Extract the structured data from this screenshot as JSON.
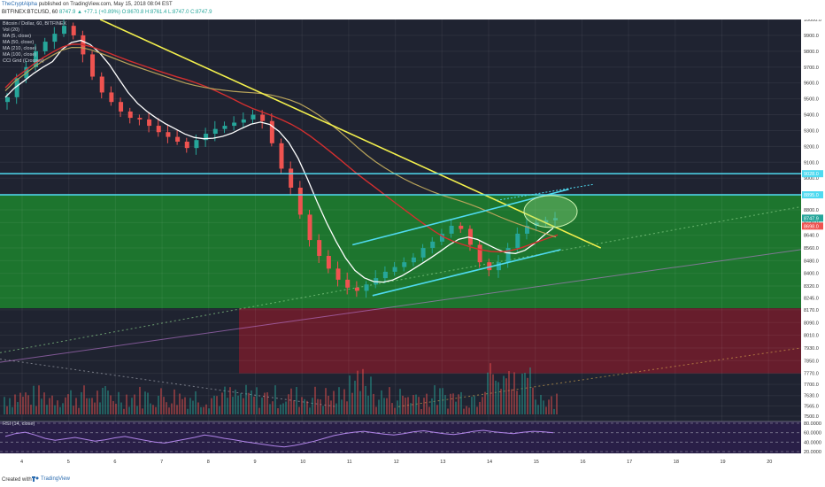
{
  "header": {
    "author": "TheCryptAlpha",
    "published": "published on TradingView.com, May 15, 2018 08:04 EST",
    "symbol_line": "BITFINEX:BTCUSD, 60",
    "ohlc": "8747.9 ▲ +77.1 (+0.89%) O:8670.8 H:8761.4 L:8747.0 C:8747.9"
  },
  "chart_labels": {
    "title": "Bitcoin / Dollar, 60, BITFINEX",
    "indicators": [
      "Vol (20)",
      "MA (5, close)",
      "MA (50, close)",
      "MA (210, close)",
      "MA (100, close)",
      "CCI Grid (Crosses)"
    ],
    "rsi": "RSI (14, close)"
  },
  "footer": {
    "created_with": "Created with",
    "brand": "TradingView"
  },
  "colors": {
    "background": "#1f2331",
    "green_zone": "#1e7a2e",
    "red_zone": "#6b1e2c",
    "trendline": "#f3f04d",
    "channel": "#4fdaf0",
    "ma_white": "#ffffff",
    "ma_red": "#d32f2f",
    "ma_tan": "#b8a35a",
    "bull": "#26a69a",
    "bear": "#ef5350",
    "rsi_band": "#2a1f4a"
  },
  "chart_data": {
    "type": "candlestick",
    "x_ticks": [
      "4",
      "5",
      "6",
      "7",
      "8",
      "9",
      "10",
      "11",
      "12",
      "13",
      "14",
      "15",
      "16",
      "17",
      "18",
      "19",
      "20"
    ],
    "y_ticks": [
      10000,
      9900,
      9800,
      9700,
      9600,
      9500,
      9400,
      9300,
      9200,
      9100,
      9000,
      8900,
      8800,
      8720,
      8640,
      8560,
      8480,
      8400,
      8320,
      8245,
      8170,
      8090,
      8010,
      7930,
      7850,
      7770,
      7700,
      7630,
      7565,
      7500
    ],
    "y_tick_labels": [
      "10000.0",
      "9900.0",
      "9800.0",
      "9700.0",
      "9600.0",
      "9500.0",
      "9400.0",
      "9300.0",
      "9200.0",
      "9100.0",
      "9000.0",
      "8900.0",
      "8800.0",
      "8720.0",
      "8640.0",
      "8560.0",
      "8480.0",
      "8400.0",
      "8320.0",
      "8245.0",
      "8170.0",
      "8090.0",
      "8010.0",
      "7930.0",
      "7850.0",
      "7770.0",
      "7700.0",
      "7630.0",
      "7565.0",
      "7500.0"
    ],
    "price_labels": [
      {
        "text": "9028.0",
        "value": 9028,
        "color": "#4fdaf0"
      },
      {
        "text": "8895.0",
        "value": 8895,
        "color": "#4fdaf0"
      },
      {
        "text": "8747.9",
        "value": 8747.9,
        "color": "#26a69a"
      },
      {
        "text": "8698.0",
        "value": 8698,
        "color": "#ef5350"
      }
    ],
    "close_series": [
      9510,
      9630,
      9700,
      9800,
      9860,
      9910,
      9960,
      9900,
      9780,
      9640,
      9540,
      9480,
      9420,
      9380,
      9370,
      9330,
      9290,
      9260,
      9230,
      9190,
      9240,
      9280,
      9310,
      9330,
      9350,
      9370,
      9400,
      9360,
      9220,
      9060,
      8940,
      8770,
      8610,
      8510,
      8430,
      8360,
      8310,
      8290,
      8330,
      8370,
      8410,
      8440,
      8470,
      8500,
      8560,
      8600,
      8650,
      8700,
      8680,
      8580,
      8470,
      8420,
      8470,
      8560,
      8650,
      8700,
      8720,
      8735,
      8747.9
    ],
    "rsi": {
      "levels": [
        80,
        60,
        40,
        20
      ],
      "range": [
        20,
        80
      ],
      "values": [
        52,
        58,
        61,
        55,
        48,
        44,
        47,
        50,
        46,
        42,
        45,
        49,
        52,
        48,
        44,
        40,
        38,
        42,
        46,
        50,
        55,
        52,
        48,
        45,
        41,
        38,
        35,
        32,
        30,
        33,
        37,
        42,
        48,
        54,
        58,
        61,
        63,
        60,
        57,
        55,
        58,
        62,
        64,
        61,
        58,
        56,
        59,
        63,
        65,
        62,
        60,
        58,
        61,
        63,
        62,
        60
      ]
    },
    "lines": [
      {
        "name": "",
        "kind": "trendline",
        "from": [
          0.125,
          10000
        ],
        "to": [
          0.75,
          8560
        ]
      },
      {
        "name": "",
        "kind": "channel",
        "from": [
          0.44,
          8580
        ],
        "to": [
          0.71,
          8930
        ]
      },
      {
        "name": "",
        "kind": "channel",
        "from": [
          0.465,
          8260
        ],
        "to": [
          0.7,
          8550
        ]
      },
      {
        "name": "",
        "kind": "horizontal",
        "value": 9028
      },
      {
        "name": "",
        "kind": "horizontal",
        "value": 8895
      }
    ],
    "zones": [
      {
        "kind": "support-resistance",
        "from_value": 8895,
        "to_value": 8180,
        "color": "green"
      },
      {
        "kind": "demand",
        "from_value": 8180,
        "to_value": 7770,
        "color": "red"
      }
    ],
    "ylim": [
      7500,
      10000
    ]
  }
}
